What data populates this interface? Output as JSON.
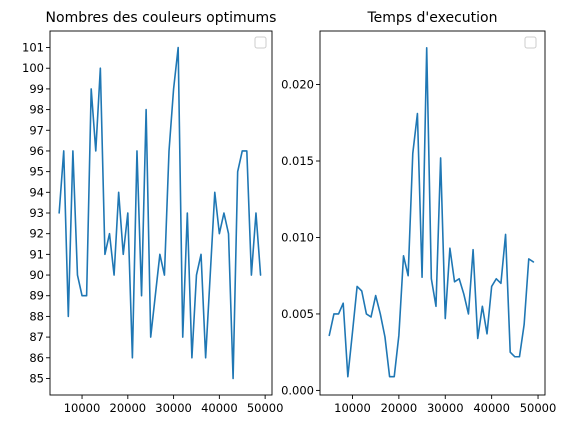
{
  "chart_data": [
    {
      "type": "line",
      "title": "Nombres des couleurs optimums",
      "xlabel": "",
      "ylabel": "",
      "xlim": [
        3000,
        51500
      ],
      "ylim": [
        84.2,
        101.8
      ],
      "xticks": [
        10000,
        20000,
        30000,
        40000,
        50000
      ],
      "yticks": [
        85,
        86,
        87,
        88,
        89,
        90,
        91,
        92,
        93,
        94,
        95,
        96,
        97,
        98,
        99,
        100,
        101
      ],
      "ytick_labels": [
        "85",
        "86",
        "87",
        "88",
        "89",
        "90",
        "91",
        "92",
        "93",
        "94",
        "95",
        "96",
        "97",
        "98",
        "99",
        "100",
        "101"
      ],
      "grid": false,
      "legend": "top-right",
      "color": "#1f77b4",
      "series": [
        {
          "x": [
            5000,
            6000,
            7000,
            8000,
            9000,
            10000,
            11000,
            12000,
            13000,
            14000,
            15000,
            16000,
            17000,
            18000,
            19000,
            20000,
            21000,
            22000,
            23000,
            24000,
            25000,
            26000,
            27000,
            28000,
            29000,
            30000,
            31000,
            32000,
            33000,
            34000,
            35000,
            36000,
            37000,
            38000,
            39000,
            40000,
            41000,
            42000,
            43000,
            44000,
            45000,
            46000,
            47000,
            48000,
            49000
          ],
          "y": [
            93,
            96,
            88,
            96,
            90,
            89,
            89,
            99,
            96,
            100,
            91,
            92,
            90,
            94,
            91,
            93,
            86,
            96,
            89,
            98,
            87,
            89,
            91,
            90,
            96,
            99,
            101,
            87,
            93,
            86,
            90,
            91,
            86,
            90,
            94,
            92,
            93,
            92,
            85,
            95,
            96,
            96,
            90,
            93,
            90
          ]
        }
      ]
    },
    {
      "type": "line",
      "title": "Temps d'execution",
      "xlabel": "",
      "ylabel": "",
      "xlim": [
        3000,
        51500
      ],
      "ylim": [
        -0.0003,
        0.0235
      ],
      "xticks": [
        10000,
        20000,
        30000,
        40000,
        50000
      ],
      "yticks": [
        0.0,
        0.005,
        0.01,
        0.015,
        0.02
      ],
      "ytick_labels": [
        "0.000",
        "0.005",
        "0.010",
        "0.015",
        "0.020"
      ],
      "grid": false,
      "legend": "top-right",
      "color": "#1f77b4",
      "series": [
        {
          "x": [
            5000,
            6000,
            7000,
            8000,
            9000,
            10000,
            11000,
            12000,
            13000,
            14000,
            15000,
            16000,
            17000,
            18000,
            19000,
            20000,
            21000,
            22000,
            23000,
            24000,
            25000,
            26000,
            27000,
            28000,
            29000,
            30000,
            31000,
            32000,
            33000,
            34000,
            35000,
            36000,
            37000,
            38000,
            39000,
            40000,
            41000,
            42000,
            43000,
            44000,
            45000,
            46000,
            47000,
            48000,
            49000
          ],
          "y": [
            0.0036,
            0.005,
            0.005,
            0.0057,
            0.0009,
            0.0038,
            0.0068,
            0.0065,
            0.005,
            0.0048,
            0.0062,
            0.005,
            0.0035,
            0.0009,
            0.0009,
            0.0036,
            0.0088,
            0.0075,
            0.0155,
            0.0181,
            0.0074,
            0.0224,
            0.0073,
            0.0055,
            0.0152,
            0.0047,
            0.0093,
            0.0071,
            0.0073,
            0.0063,
            0.005,
            0.0092,
            0.0034,
            0.0055,
            0.0037,
            0.0068,
            0.0073,
            0.007,
            0.0102,
            0.0025,
            0.0022,
            0.0022,
            0.0043,
            0.0086,
            0.0084
          ]
        }
      ]
    }
  ],
  "tick_format": {
    "x": [
      "10000",
      "20000",
      "30000",
      "40000",
      "50000"
    ]
  }
}
